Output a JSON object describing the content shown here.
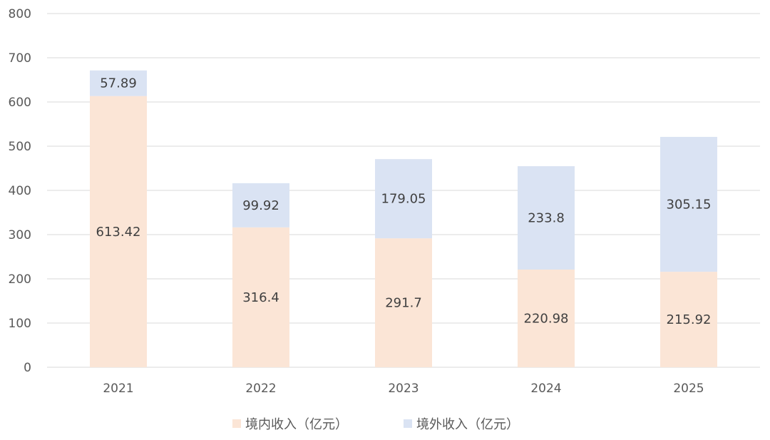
{
  "chart_data": {
    "type": "bar",
    "stacked": true,
    "categories": [
      "2021",
      "2022",
      "2023",
      "2024",
      "2025"
    ],
    "series": [
      {
        "name": "境内收入（亿元）",
        "values": [
          613.42,
          316.4,
          291.7,
          220.98,
          215.92
        ],
        "color": "#fbe5d6"
      },
      {
        "name": "境外收入（亿元）",
        "values": [
          57.89,
          99.92,
          179.05,
          233.8,
          305.15
        ],
        "color": "#dae3f3"
      }
    ],
    "yticks": [
      0,
      100,
      200,
      300,
      400,
      500,
      600,
      700,
      800
    ],
    "ylim": [
      0,
      800
    ],
    "grid": true,
    "legend_position": "bottom",
    "data_labels": true
  }
}
